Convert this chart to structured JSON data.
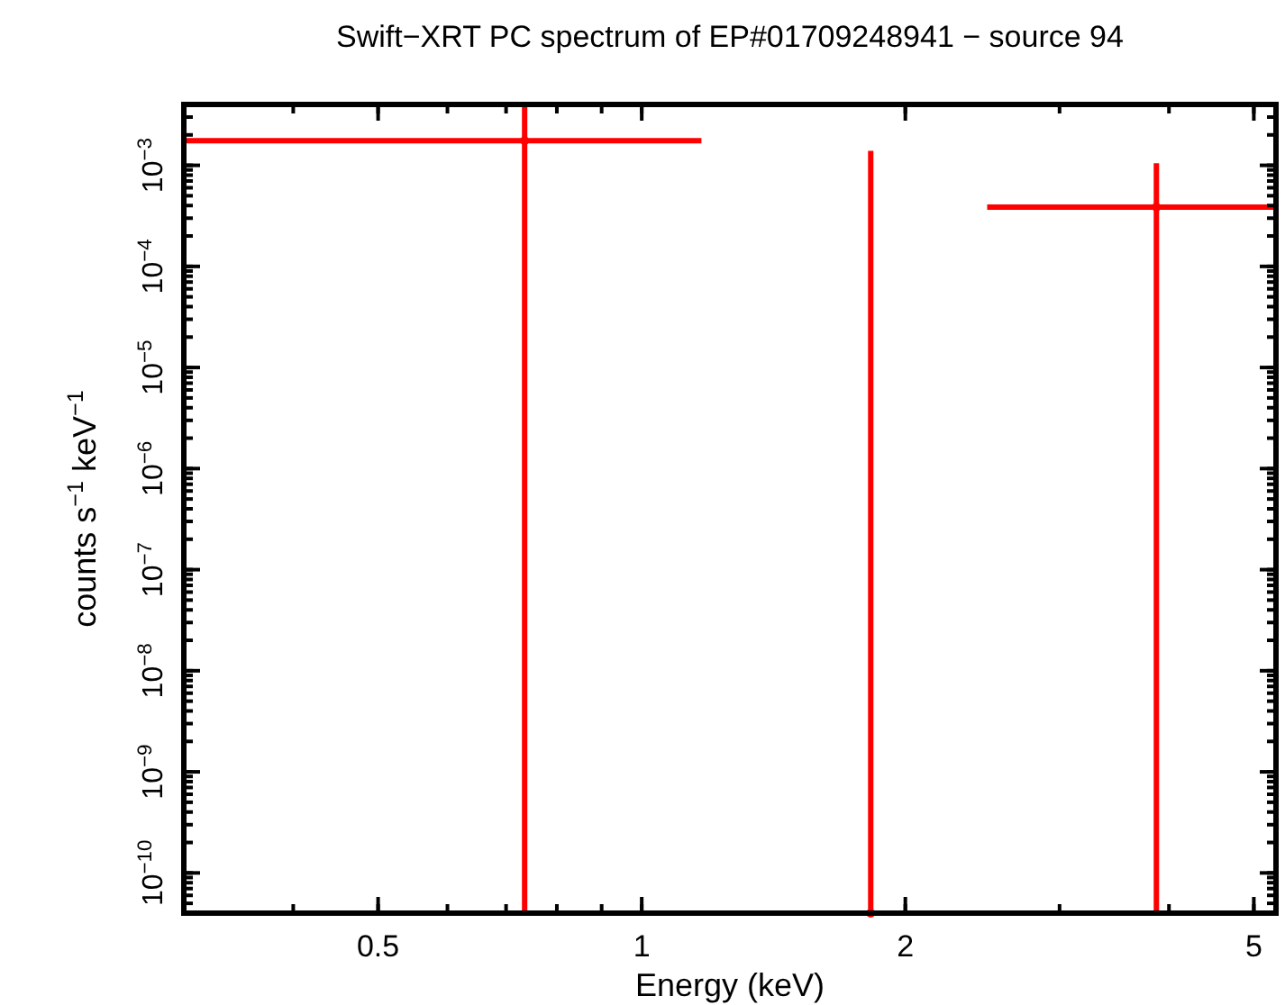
{
  "chart_data": {
    "type": "scatter",
    "title": "Swift−XRT PC spectrum of EP#01709248941 − source 94",
    "xlabel": "Energy (keV)",
    "ylabel": "counts s$^{−1}$ keV$^{−1}$",
    "log": "xy",
    "xlim": [
      0.3,
      5.3
    ],
    "xticks": [
      0.5,
      1,
      2,
      5
    ],
    "ylim": [
      4e-11,
      0.004
    ],
    "yticks": [
      {
        "value": 1e-10,
        "label": "10$^{−10}$"
      },
      {
        "value": 1e-09,
        "label": "10$^{−9}$"
      },
      {
        "value": 1e-08,
        "label": "10$^{−8}$"
      },
      {
        "value": 1e-07,
        "label": "10$^{−7}$"
      },
      {
        "value": 1e-06,
        "label": "10$^{−6}$"
      },
      {
        "value": 1e-05,
        "label": "10$^{−5}$"
      },
      {
        "value": 0.0001,
        "label": "10$^{−4}$"
      },
      {
        "value": 0.001,
        "label": "10$^{−3}$"
      }
    ],
    "series": [
      {
        "color": "#ff0000",
        "x": [
          0.735,
          1.826,
          3.87
        ],
        "values": [
          0.00175,
          4e-11,
          0.000386
        ],
        "errors": [
          [
            4e-11,
            0.004
          ],
          [
            4e-11,
            0.00139
          ],
          [
            4e-11,
            0.00105
          ]
        ],
        "xerrors": [
          [
            0.3,
            1.17
          ],
          null,
          [
            2.48,
            5.3
          ]
        ]
      }
    ]
  }
}
